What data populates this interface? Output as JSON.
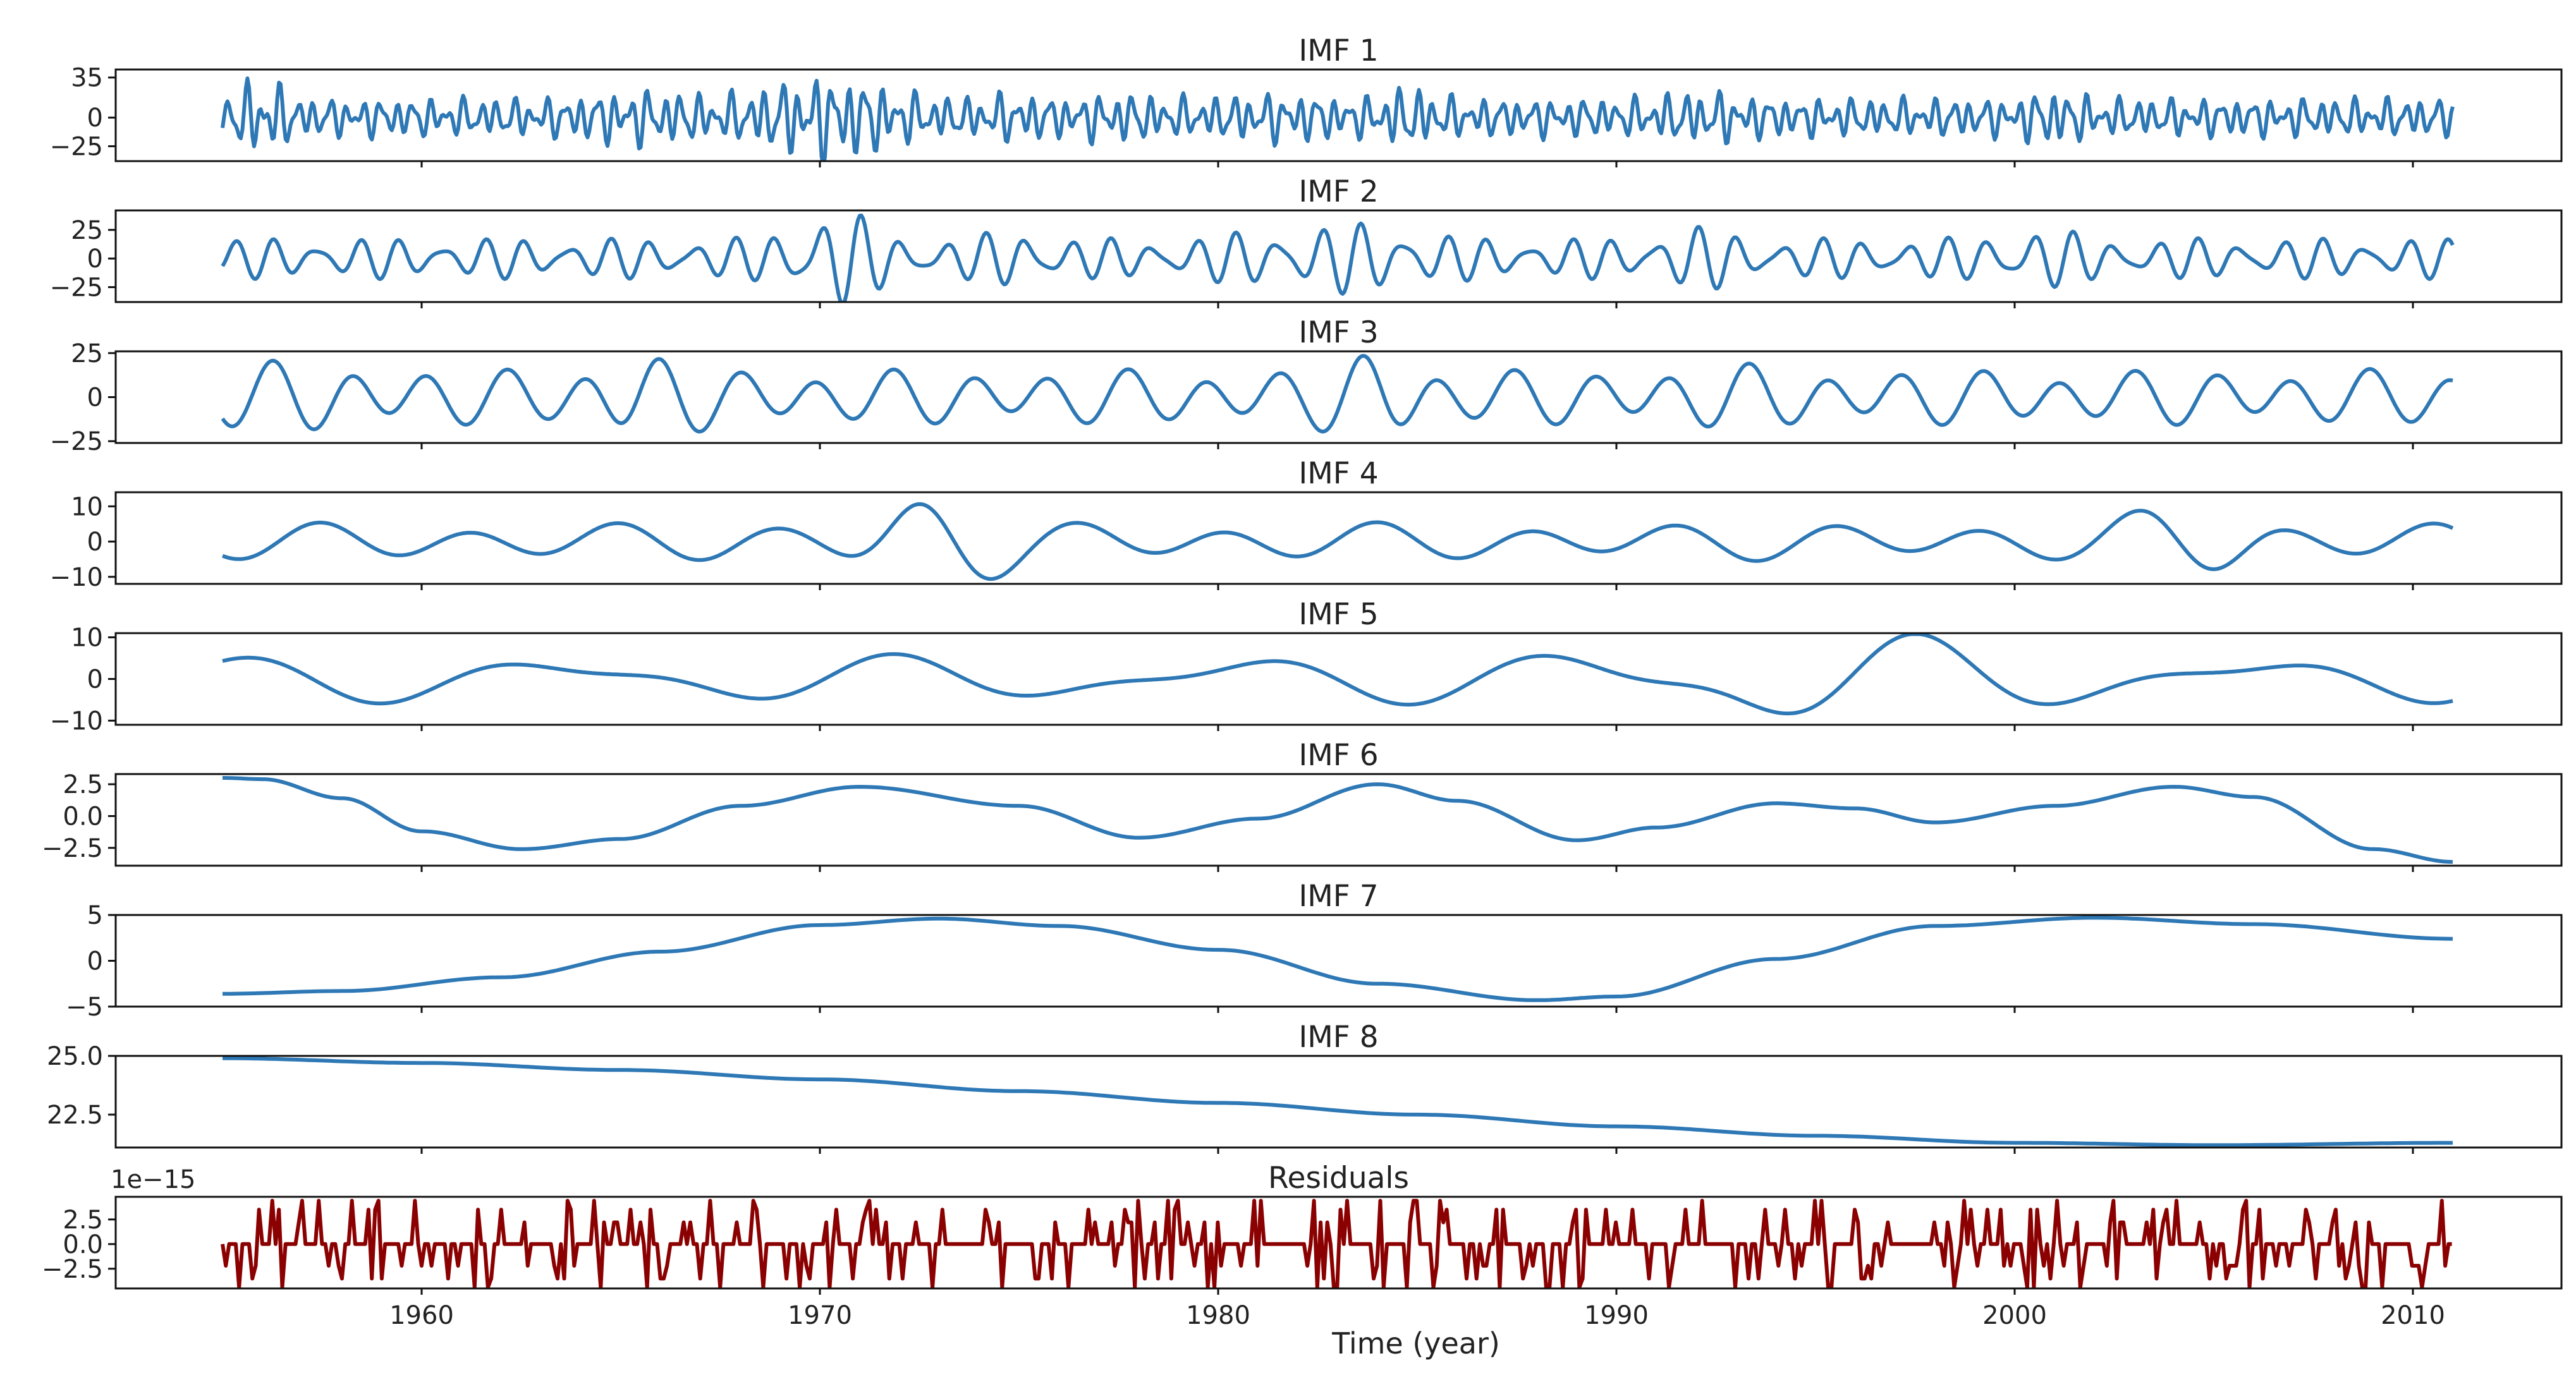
{
  "chart_data": {
    "type": "line",
    "xlabel": "Time (year)",
    "xrange": [
      1955,
      2011
    ],
    "xticks": [
      1960,
      1970,
      1980,
      1990,
      2000,
      2010
    ],
    "colors": {
      "imf": "#2e78b5",
      "residual": "#8b0000"
    },
    "panels": [
      {
        "title": "IMF 1",
        "ylim": [
          -38,
          42
        ],
        "yticks": [
          35,
          0,
          -25
        ],
        "ytick_labels": [
          "35",
          "0",
          "−25"
        ],
        "color": "#2e78b5",
        "components": [
          {
            "amp": 10,
            "period": 0.42,
            "phase": 0.3
          },
          {
            "amp": 6,
            "period": 0.27,
            "phase": 1.1
          },
          {
            "amp": 4,
            "period": 0.67,
            "phase": 2.0
          }
        ],
        "bursts": [
          {
            "x": 1956.0,
            "w": 0.6,
            "amp": 2.2
          },
          {
            "x": 1965.5,
            "w": 1.5,
            "amp": 1.5
          },
          {
            "x": 1970.2,
            "w": 1.8,
            "amp": 2.3
          },
          {
            "x": 1974.8,
            "w": 0.8,
            "amp": 1.3
          },
          {
            "x": 1977.5,
            "w": 1.2,
            "amp": 1.3
          },
          {
            "x": 1981.5,
            "w": 1.5,
            "amp": 1.3
          },
          {
            "x": 1984.8,
            "w": 0.8,
            "amp": 1.6
          },
          {
            "x": 1992.2,
            "w": 1.2,
            "amp": 1.4
          },
          {
            "x": 2001.0,
            "w": 0.8,
            "amp": 1.5
          }
        ]
      },
      {
        "title": "IMF 2",
        "ylim": [
          -38,
          42
        ],
        "yticks": [
          25,
          0,
          -25
        ],
        "ytick_labels": [
          "25",
          "0",
          "−25"
        ],
        "color": "#2e78b5",
        "components": [
          {
            "amp": 12,
            "period": 1.05,
            "phase": 0.5
          },
          {
            "amp": 6,
            "period": 0.78,
            "phase": 1.7
          }
        ],
        "bursts": [
          {
            "x": 1970.3,
            "w": 1.2,
            "amp": 2.6
          },
          {
            "x": 1975.0,
            "w": 1.0,
            "amp": 1.5
          },
          {
            "x": 1981.5,
            "w": 1.5,
            "amp": 1.5
          },
          {
            "x": 1984.0,
            "w": 1.5,
            "amp": 1.8
          },
          {
            "x": 1992.0,
            "w": 1.2,
            "amp": 1.6
          },
          {
            "x": 2000.5,
            "w": 1.2,
            "amp": 1.6
          }
        ]
      },
      {
        "title": "IMF 3",
        "ylim": [
          -26,
          26
        ],
        "yticks": [
          25,
          0,
          -25
        ],
        "ytick_labels": [
          "25",
          "0",
          "−25"
        ],
        "color": "#2e78b5",
        "components": [
          {
            "amp": 12,
            "period": 1.95,
            "phase": 0.2
          },
          {
            "amp": 4,
            "period": 3.1,
            "phase": 1.4
          }
        ],
        "bursts": [
          {
            "x": 1956.3,
            "w": 3.0,
            "amp": 1.3
          },
          {
            "x": 1965.5,
            "w": 1.5,
            "amp": 1.6
          },
          {
            "x": 1984.0,
            "w": 1.3,
            "amp": 1.7
          },
          {
            "x": 1993.0,
            "w": 2.0,
            "amp": 1.2
          }
        ]
      },
      {
        "title": "IMF 4",
        "ylim": [
          -12,
          14
        ],
        "yticks": [
          10,
          0,
          -10
        ],
        "ytick_labels": [
          "10",
          "0",
          "−10"
        ],
        "color": "#2e78b5",
        "components": [
          {
            "amp": 4,
            "period": 3.8,
            "phase": 0.9
          },
          {
            "amp": 1.5,
            "period": 6.5,
            "phase": 0.3
          }
        ],
        "bursts": [
          {
            "x": 1972.8,
            "w": 2.0,
            "amp": 2.8
          },
          {
            "x": 2004.5,
            "w": 2.0,
            "amp": 2.0
          }
        ]
      },
      {
        "title": "IMF 5",
        "ylim": [
          -11,
          11
        ],
        "yticks": [
          10,
          0,
          -10
        ],
        "ytick_labels": [
          "10",
          "0",
          "−10"
        ],
        "color": "#2e78b5",
        "components": [
          {
            "amp": 4,
            "period": 8.5,
            "phase": 1.6
          },
          {
            "amp": 2,
            "period": 5.2,
            "phase": 0.4
          }
        ],
        "bursts": [
          {
            "x": 1994.5,
            "w": 5.0,
            "amp": 2.2
          }
        ]
      },
      {
        "title": "IMF 6",
        "ylim": [
          -3.9,
          3.3
        ],
        "yticks": [
          2.5,
          0.0,
          -2.5
        ],
        "ytick_labels": [
          "2.5",
          "0.0",
          "−2.5"
        ],
        "color": "#2e78b5",
        "points": [
          [
            1955,
            3.0
          ],
          [
            1956,
            2.9
          ],
          [
            1958,
            1.4
          ],
          [
            1960,
            -1.2
          ],
          [
            1962.5,
            -2.6
          ],
          [
            1965,
            -1.8
          ],
          [
            1968,
            0.8
          ],
          [
            1971,
            2.3
          ],
          [
            1975,
            0.8
          ],
          [
            1978,
            -1.7
          ],
          [
            1981,
            -0.2
          ],
          [
            1984,
            2.5
          ],
          [
            1986,
            1.2
          ],
          [
            1989,
            -1.9
          ],
          [
            1991,
            -0.9
          ],
          [
            1994,
            1.0
          ],
          [
            1996,
            0.6
          ],
          [
            1998,
            -0.5
          ],
          [
            2001,
            0.8
          ],
          [
            2004,
            2.3
          ],
          [
            2006,
            1.5
          ],
          [
            2009,
            -2.6
          ],
          [
            2011,
            -3.6
          ]
        ]
      },
      {
        "title": "IMF 7",
        "ylim": [
          -5,
          5
        ],
        "yticks": [
          5,
          0,
          -5
        ],
        "ytick_labels": [
          "5",
          "0",
          "−5"
        ],
        "color": "#2e78b5",
        "points": [
          [
            1955,
            -3.6
          ],
          [
            1958,
            -3.3
          ],
          [
            1962,
            -1.8
          ],
          [
            1966,
            1.0
          ],
          [
            1970,
            3.9
          ],
          [
            1973,
            4.6
          ],
          [
            1976,
            3.8
          ],
          [
            1980,
            1.2
          ],
          [
            1984,
            -2.5
          ],
          [
            1988,
            -4.3
          ],
          [
            1990,
            -3.9
          ],
          [
            1994,
            0.2
          ],
          [
            1998,
            3.8
          ],
          [
            2002,
            4.7
          ],
          [
            2006,
            4.0
          ],
          [
            2011,
            2.4
          ]
        ]
      },
      {
        "title": "IMF 8",
        "ylim": [
          21.1,
          25.0
        ],
        "yticks": [
          25.0,
          22.5
        ],
        "ytick_labels": [
          "25.0",
          "22.5"
        ],
        "color": "#2e78b5",
        "points": [
          [
            1955,
            24.9
          ],
          [
            1960,
            24.7
          ],
          [
            1965,
            24.4
          ],
          [
            1970,
            24.0
          ],
          [
            1975,
            23.5
          ],
          [
            1980,
            23.0
          ],
          [
            1985,
            22.5
          ],
          [
            1990,
            22.0
          ],
          [
            1995,
            21.6
          ],
          [
            2000,
            21.3
          ],
          [
            2005,
            21.2
          ],
          [
            2011,
            21.3
          ]
        ]
      },
      {
        "title": "Residuals",
        "offset_label": "1e−15",
        "ylim": [
          -4.5,
          4.8
        ],
        "yticks": [
          2.5,
          0.0,
          -2.5
        ],
        "ytick_labels": [
          "2.5",
          "0.0",
          "−2.5"
        ],
        "color": "#8b0000",
        "spikes": {
          "levels": [
            2.2,
            3.5,
            4.4,
            -2.2,
            -3.5,
            -4.4
          ],
          "prob": 0.38,
          "step_years": 0.0833
        }
      }
    ]
  }
}
